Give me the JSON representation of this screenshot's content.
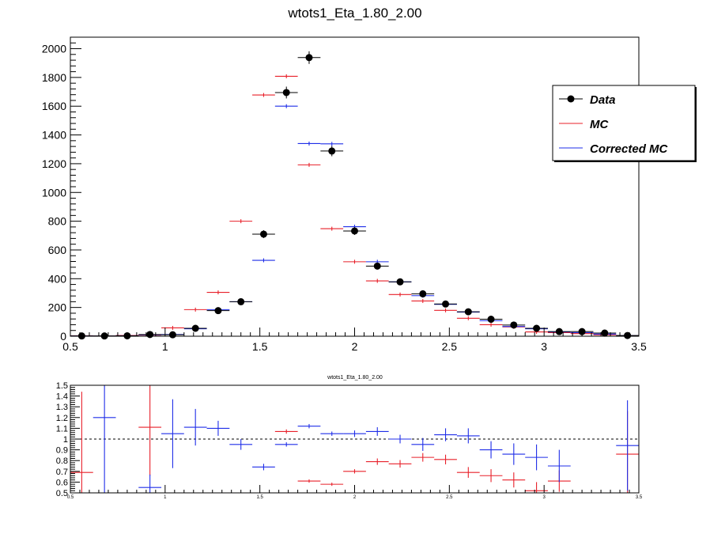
{
  "colors": {
    "data": "#000000",
    "mc": "#e8202a",
    "corrected_mc": "#1f2ee8",
    "axis": "#000000"
  },
  "chart_data": [
    {
      "type": "scatter",
      "title": "wtots1_Eta_1.80_2.00",
      "xlim": [
        0.5,
        3.5
      ],
      "ylim": [
        0,
        2080
      ],
      "x_ticks": [
        0.5,
        1,
        1.5,
        2,
        2.5,
        3,
        3.5
      ],
      "x_tick_labels": [
        "0.5",
        "1",
        "1.5",
        "2",
        "2.5",
        "3",
        "3.5"
      ],
      "y_ticks": [
        0,
        200,
        400,
        600,
        800,
        1000,
        1200,
        1400,
        1600,
        1800,
        2000
      ],
      "y_tick_labels": [
        "0",
        "200",
        "400",
        "600",
        "800",
        "1000",
        "1200",
        "1400",
        "1600",
        "1800",
        "2000"
      ],
      "bin_width": 0.12,
      "grid": false,
      "legend_position": "right",
      "legend": [
        "Data",
        "MC",
        "Corrected MC"
      ],
      "x": [
        0.56,
        0.68,
        0.8,
        0.92,
        1.04,
        1.16,
        1.28,
        1.4,
        1.52,
        1.64,
        1.76,
        1.88,
        2.0,
        2.12,
        2.24,
        2.36,
        2.48,
        2.6,
        2.72,
        2.84,
        2.96,
        3.08,
        3.2,
        3.32,
        3.44
      ],
      "series": [
        {
          "name": "Data",
          "marker": "circle",
          "values": [
            2,
            2,
            3,
            12,
            10,
            55,
            178,
            240,
            710,
            1695,
            1938,
            1288,
            732,
            488,
            378,
            295,
            224,
            170,
            118,
            78,
            55,
            32,
            32,
            22,
            5
          ],
          "errors": [
            2,
            2,
            2,
            4,
            4,
            8,
            14,
            16,
            27,
            41,
            44,
            36,
            27,
            22,
            19,
            17,
            15,
            13,
            11,
            9,
            7,
            6,
            6,
            5,
            2
          ]
        },
        {
          "name": "MC",
          "marker": "cross",
          "values": [
            3,
            2,
            5,
            8,
            58,
            185,
            305,
            800,
            1678,
            1808,
            1192,
            748,
            518,
            385,
            290,
            245,
            180,
            125,
            80,
            65,
            30,
            25,
            18,
            10,
            3
          ]
        },
        {
          "name": "Corrected MC",
          "marker": "cross",
          "values": [
            2,
            1,
            3,
            10,
            12,
            52,
            185,
            240,
            528,
            1600,
            1340,
            1338,
            762,
            518,
            378,
            282,
            222,
            168,
            108,
            68,
            52,
            30,
            25,
            15,
            4
          ]
        }
      ]
    },
    {
      "type": "scatter",
      "title": "wtots1_Eta_1.80_2.00",
      "xlim": [
        0.5,
        3.5
      ],
      "ylim": [
        0.5,
        1.5
      ],
      "x_ticks": [
        0.5,
        1,
        1.5,
        2,
        2.5,
        3,
        3.5
      ],
      "x_tick_labels": [
        "0.5",
        "1",
        "1.5",
        "2",
        "2.5",
        "3",
        "3.5"
      ],
      "y_ticks": [
        0.5,
        0.6,
        0.7,
        0.8,
        0.9,
        1,
        1.1,
        1.2,
        1.3,
        1.4,
        1.5
      ],
      "y_tick_labels": [
        "0.5",
        "0.6",
        "0.7",
        "0.8",
        "0.9",
        "1",
        "1.1",
        "1.2",
        "1.3",
        "1.4",
        "1.5"
      ],
      "reference_line": 1,
      "bin_width": 0.12,
      "grid": false,
      "series": [
        {
          "name": "MC",
          "points": [
            {
              "x": 0.56,
              "y": 0.69,
              "err": 0.75
            },
            {
              "x": 0.92,
              "y": 1.11,
              "err": 0.45
            },
            {
              "x": 1.64,
              "y": 1.07,
              "err": 0.02
            },
            {
              "x": 1.76,
              "y": 0.61,
              "err": 0.015
            },
            {
              "x": 1.88,
              "y": 0.58,
              "err": 0.015
            },
            {
              "x": 2.0,
              "y": 0.7,
              "err": 0.02
            },
            {
              "x": 2.12,
              "y": 0.79,
              "err": 0.03
            },
            {
              "x": 2.24,
              "y": 0.77,
              "err": 0.035
            },
            {
              "x": 2.36,
              "y": 0.83,
              "err": 0.04
            },
            {
              "x": 2.48,
              "y": 0.81,
              "err": 0.045
            },
            {
              "x": 2.6,
              "y": 0.69,
              "err": 0.05
            },
            {
              "x": 2.72,
              "y": 0.66,
              "err": 0.06
            },
            {
              "x": 2.84,
              "y": 0.62,
              "err": 0.07
            },
            {
              "x": 2.96,
              "y": 0.52,
              "err": 0.08
            },
            {
              "x": 3.08,
              "y": 0.61,
              "err": 0.1
            },
            {
              "x": 3.44,
              "y": 0.86,
              "err": 0.4
            }
          ]
        },
        {
          "name": "Corrected MC",
          "points": [
            {
              "x": 0.68,
              "y": 1.2,
              "err": 0.75
            },
            {
              "x": 0.92,
              "y": 0.55,
              "err": 0.12
            },
            {
              "x": 1.04,
              "y": 1.05,
              "err": 0.32
            },
            {
              "x": 1.16,
              "y": 1.11,
              "err": 0.17
            },
            {
              "x": 1.28,
              "y": 1.1,
              "err": 0.07
            },
            {
              "x": 1.4,
              "y": 0.95,
              "err": 0.05
            },
            {
              "x": 1.52,
              "y": 0.74,
              "err": 0.03
            },
            {
              "x": 1.64,
              "y": 0.95,
              "err": 0.02
            },
            {
              "x": 1.76,
              "y": 1.12,
              "err": 0.02
            },
            {
              "x": 1.88,
              "y": 1.05,
              "err": 0.02
            },
            {
              "x": 2.0,
              "y": 1.05,
              "err": 0.03
            },
            {
              "x": 2.12,
              "y": 1.07,
              "err": 0.04
            },
            {
              "x": 2.24,
              "y": 1.0,
              "err": 0.04
            },
            {
              "x": 2.36,
              "y": 0.95,
              "err": 0.06
            },
            {
              "x": 2.48,
              "y": 1.04,
              "err": 0.06
            },
            {
              "x": 2.6,
              "y": 1.03,
              "err": 0.07
            },
            {
              "x": 2.72,
              "y": 0.9,
              "err": 0.08
            },
            {
              "x": 2.84,
              "y": 0.86,
              "err": 0.1
            },
            {
              "x": 2.96,
              "y": 0.83,
              "err": 0.12
            },
            {
              "x": 3.08,
              "y": 0.75,
              "err": 0.15
            },
            {
              "x": 3.44,
              "y": 0.94,
              "err": 0.42
            }
          ]
        }
      ]
    }
  ]
}
